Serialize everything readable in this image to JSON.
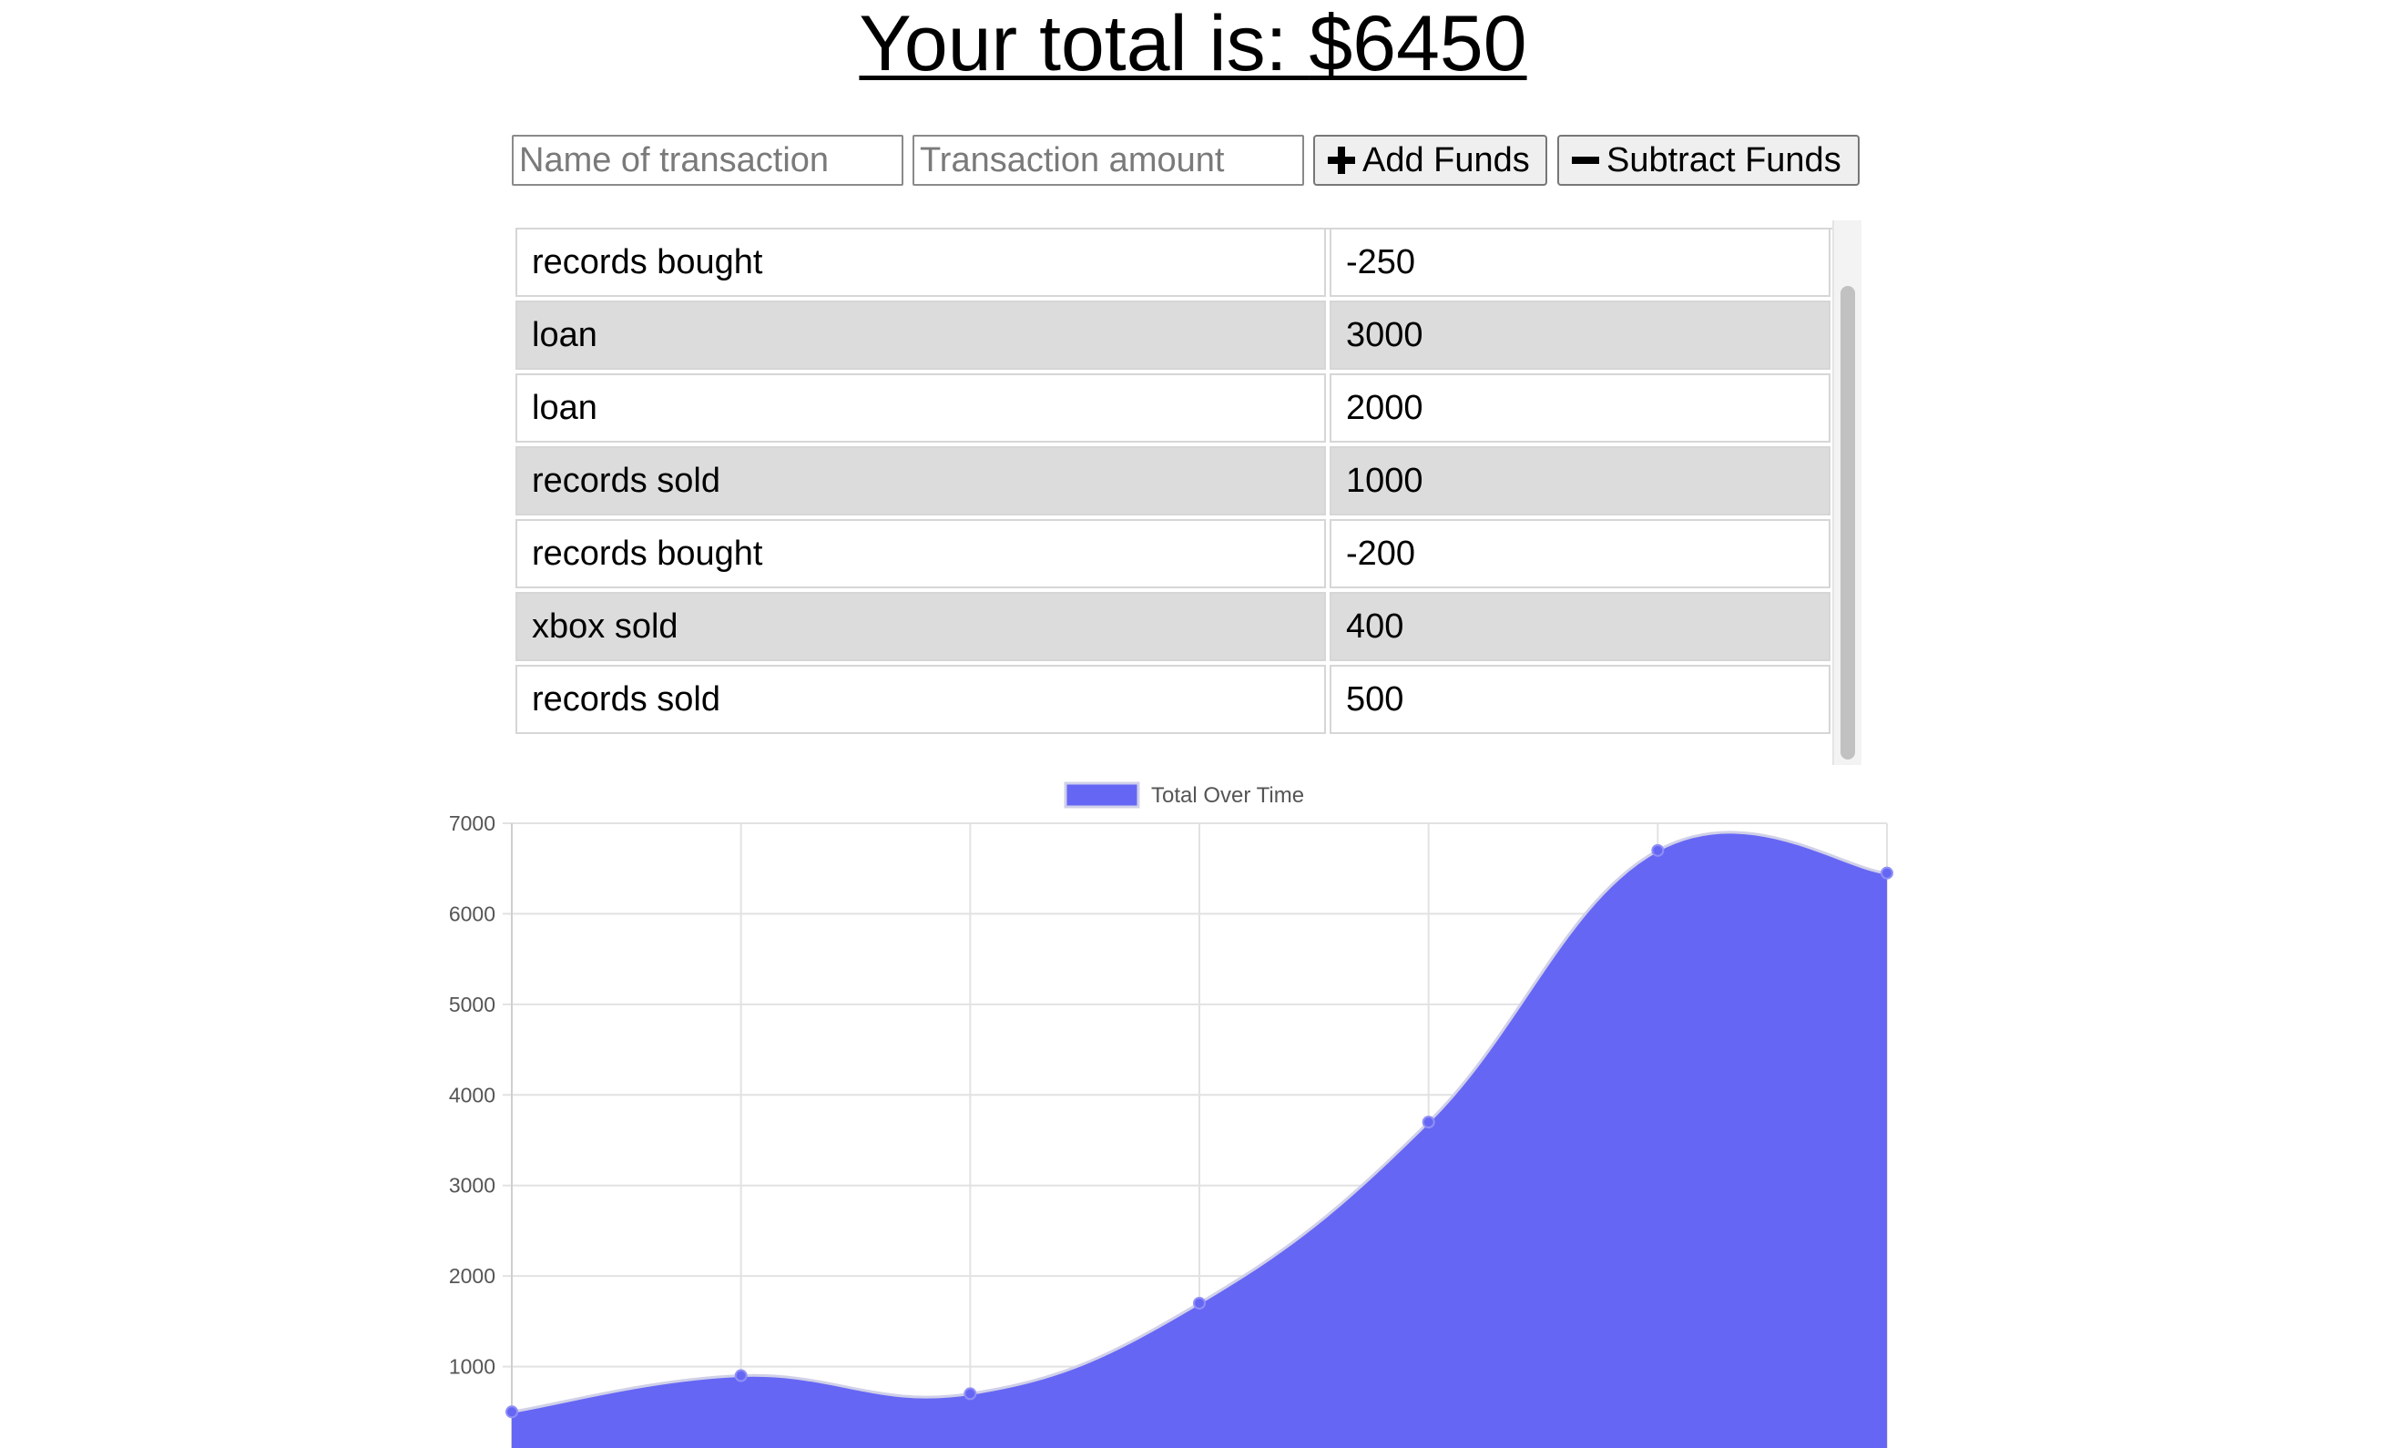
{
  "header": {
    "total_prefix": "Your total is: ",
    "total_value": "$6450"
  },
  "form": {
    "name_placeholder": "Name of transaction",
    "amount_placeholder": "Transaction amount",
    "add_label": "Add Funds",
    "subtract_label": "Subtract Funds",
    "add_icon": "plus-icon",
    "subtract_icon": "minus-icon"
  },
  "transactions": [
    {
      "name": "records bought",
      "amount": "-250"
    },
    {
      "name": "loan",
      "amount": "3000"
    },
    {
      "name": "loan",
      "amount": "2000"
    },
    {
      "name": "records sold",
      "amount": "1000"
    },
    {
      "name": "records bought",
      "amount": "-200"
    },
    {
      "name": "xbox sold",
      "amount": "400"
    },
    {
      "name": "records sold",
      "amount": "500"
    }
  ],
  "chart_data": {
    "type": "area",
    "title": "",
    "xlabel": "",
    "ylabel": "",
    "y_ticks": [
      "1000",
      "2000",
      "3000",
      "4000",
      "5000",
      "6000",
      "7000"
    ],
    "ylim": [
      0,
      7000
    ],
    "grid": true,
    "legend_position": "top-center",
    "series": [
      {
        "name": "Total Over Time",
        "color": "#6666f5",
        "values": [
          500,
          900,
          700,
          1700,
          3700,
          6700,
          6450
        ]
      }
    ]
  }
}
